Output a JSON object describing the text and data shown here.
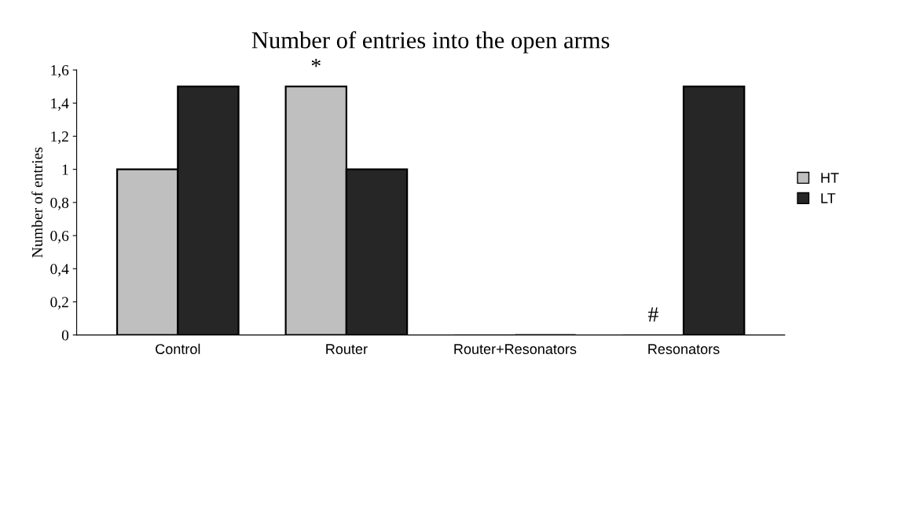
{
  "chart_data": {
    "type": "bar",
    "title": "Number of entries into the open arms",
    "ylabel": "Number of entries",
    "categories": [
      "Control",
      "Router",
      "Router+Resonators",
      "Resonators"
    ],
    "series": [
      {
        "name": "HT",
        "color": "#bfbfbf",
        "values": [
          1,
          1.5,
          0,
          0
        ]
      },
      {
        "name": "LT",
        "color": "#262626",
        "values": [
          1.5,
          1,
          0,
          1.5
        ]
      }
    ],
    "ylim": [
      0,
      1.6
    ],
    "yticks": [
      0,
      {
        "value": 0.2,
        "label": "0,2"
      },
      {
        "value": 0.4,
        "label": "0,4"
      },
      {
        "value": 0.6,
        "label": "0,6"
      },
      {
        "value": 0.8,
        "label": "0,8"
      },
      1,
      {
        "value": 1.2,
        "label": "1,2"
      },
      {
        "value": 1.4,
        "label": "1,4"
      },
      {
        "value": 1.6,
        "label": "1,6"
      }
    ],
    "annotations": [
      {
        "text": "*",
        "x": "Router",
        "y": 1.5
      },
      {
        "text": "#",
        "x": "Resonators",
        "y": 0
      }
    ],
    "grid": false,
    "legend": "right"
  }
}
